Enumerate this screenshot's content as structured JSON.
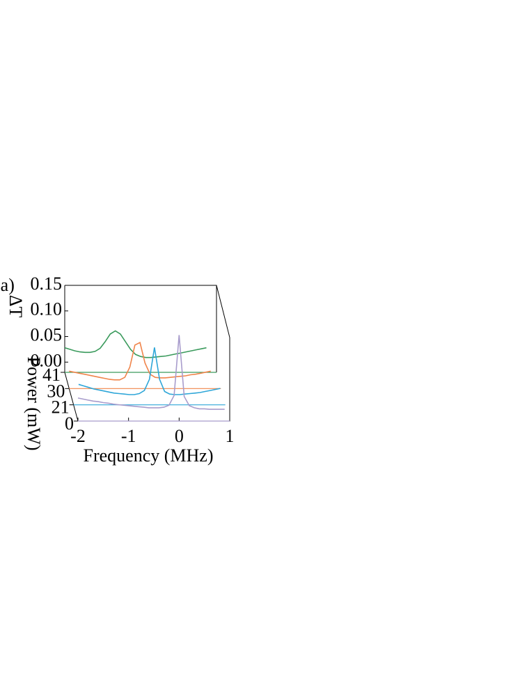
{
  "chart_data": {
    "type": "waterfall-line",
    "panel_label": "(a)",
    "ylabel": "ΔT",
    "zlabel": "Power (mW)",
    "xlabel": "Frequency (MHz)",
    "xlim": [
      -2,
      1
    ],
    "xticks": [
      -2,
      -1,
      0,
      1
    ],
    "ylim": [
      -0.02,
      0.15
    ],
    "yticks": [
      {
        "value": 0,
        "label": "0.00"
      },
      {
        "value": 0.05,
        "label": "0.05"
      },
      {
        "value": 0.1,
        "label": "0.10"
      },
      {
        "value": 0.15,
        "label": "0.15"
      }
    ],
    "zticks": [
      0,
      21,
      30,
      41
    ],
    "x": [
      -2.0,
      -1.9,
      -1.8,
      -1.7,
      -1.6,
      -1.5,
      -1.4,
      -1.3,
      -1.2,
      -1.1,
      -1.0,
      -0.9,
      -0.8,
      -0.7,
      -0.6,
      -0.5,
      -0.4,
      -0.3,
      -0.2,
      -0.1,
      0.0,
      0.1,
      0.2,
      0.3,
      0.4,
      0.5,
      0.6,
      0.7,
      0.8,
      0.9
    ],
    "series": [
      {
        "z": 41,
        "color": "#3a9a5c",
        "values": [
          0.028,
          0.025,
          0.022,
          0.02,
          0.019,
          0.019,
          0.021,
          0.027,
          0.04,
          0.055,
          0.061,
          0.055,
          0.04,
          0.025,
          0.015,
          0.011,
          0.009,
          0.009,
          0.01,
          0.011,
          0.012,
          0.014,
          0.016,
          0.018,
          0.02,
          0.022,
          0.024,
          0.026,
          0.028,
          null
        ]
      },
      {
        "z": 30,
        "color": "#f0844a",
        "values": [
          0.014,
          0.012,
          0.01,
          0.008,
          0.006,
          0.004,
          0.002,
          0.0,
          -0.002,
          -0.003,
          -0.003,
          0.002,
          0.022,
          0.065,
          0.07,
          0.03,
          0.008,
          0.002,
          0.001,
          0.001,
          0.002,
          0.003,
          0.004,
          0.005,
          0.007,
          0.008,
          0.01,
          0.012,
          0.014,
          null
        ]
      },
      {
        "z": 21,
        "color": "#2ea6d8",
        "values": [
          null,
          0.02,
          0.017,
          0.014,
          0.011,
          0.009,
          0.007,
          0.005,
          0.003,
          0.002,
          0.001,
          0.0,
          0.0,
          0.002,
          0.008,
          0.03,
          0.092,
          0.03,
          0.006,
          0.001,
          0.0,
          0.0,
          0.001,
          0.002,
          0.003,
          0.004,
          0.006,
          0.008,
          0.01,
          0.012
        ]
      },
      {
        "z": 0,
        "color": "#a89ccc",
        "values": [
          0.025,
          0.023,
          0.021,
          0.019,
          0.018,
          0.016,
          0.015,
          0.013,
          0.012,
          0.011,
          0.01,
          0.009,
          0.008,
          0.007,
          0.006,
          0.006,
          0.006,
          0.007,
          0.011,
          0.03,
          0.148,
          0.028,
          0.01,
          0.006,
          0.004,
          0.004,
          0.003,
          0.003,
          0.003,
          0.003
        ]
      }
    ]
  }
}
